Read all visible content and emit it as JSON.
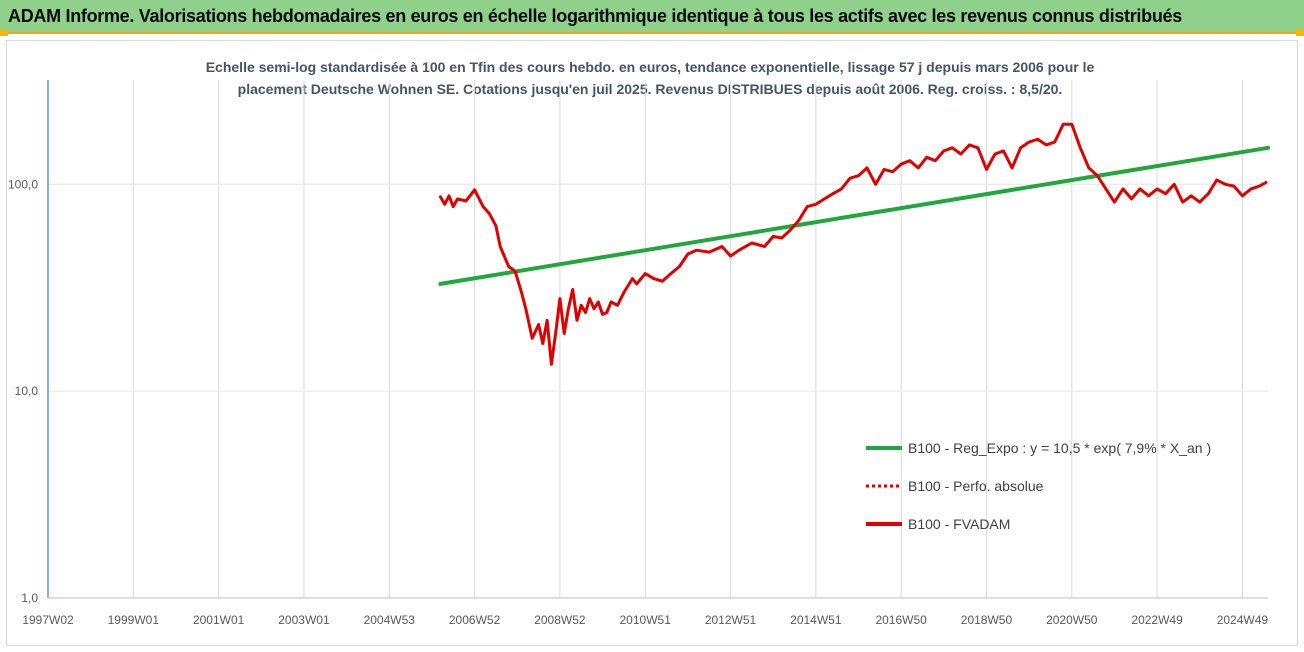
{
  "banner": {
    "title": "ADAM Informe. Valorisations hebdomadaires en euros en échelle logarithmique identique à tous les actifs avec les revenus connus distribués",
    "background": "#8fd08a",
    "accent": "#f5b800"
  },
  "chart_data": {
    "type": "line",
    "subtitle_lines": [
      "Echelle semi-log standardisée à 100 en Tfin des cours hebdo. en euros, tendance exponentielle, lissage 57 j depuis mars 2006 pour le",
      "placement Deutsche Wohnen SE. Cotations jusqu'en juil 2025. Revenus DISTRIBUES depuis août 2006. Reg. croiss. : 8,5/20."
    ],
    "y_scale": "log",
    "ylim": [
      1,
      200
    ],
    "y_ticks": [
      1,
      10,
      100
    ],
    "y_tick_labels": [
      "1,0",
      "10,0",
      "100,0"
    ],
    "x_range": [
      1997.0,
      2025.6
    ],
    "x_ticks": [
      1997.0,
      1999.0,
      2001.0,
      2003.0,
      2005.0,
      2007.0,
      2009.0,
      2011.0,
      2013.0,
      2015.0,
      2017.0,
      2019.0,
      2021.0,
      2023.0,
      2025.0
    ],
    "x_tick_labels": [
      "1997W02",
      "1999W01",
      "2001W01",
      "2003W01",
      "2004W53",
      "2006W52",
      "2008W52",
      "2010W51",
      "2012W51",
      "2014W51",
      "2016W50",
      "2018W50",
      "2020W50",
      "2022W49",
      "2024W49"
    ],
    "grid": "vertical",
    "legend_position": "bottom-right",
    "series": [
      {
        "name": "B100 - Reg_Expo : y = 10,5 * exp( 7,9% *  X_an )",
        "style": "solid",
        "color": "#21a73c",
        "x": [
          2006.2,
          2025.6
        ],
        "y": [
          33,
          150
        ]
      },
      {
        "name": "B100 - Perfo. absolue",
        "style": "dotted",
        "color": "#e00000",
        "x": [],
        "y": []
      },
      {
        "name": "B100 - FVADAM",
        "style": "solid",
        "color": "#e00000",
        "x": [
          2006.2,
          2006.3,
          2006.4,
          2006.5,
          2006.6,
          2006.8,
          2007.0,
          2007.2,
          2007.35,
          2007.5,
          2007.6,
          2007.8,
          2007.95,
          2008.1,
          2008.2,
          2008.35,
          2008.5,
          2008.6,
          2008.7,
          2008.8,
          2008.9,
          2009.0,
          2009.1,
          2009.2,
          2009.3,
          2009.4,
          2009.5,
          2009.6,
          2009.7,
          2009.8,
          2009.9,
          2010.0,
          2010.1,
          2010.2,
          2010.35,
          2010.5,
          2010.7,
          2010.8,
          2011.0,
          2011.2,
          2011.4,
          2011.6,
          2011.8,
          2012.0,
          2012.2,
          2012.5,
          2012.8,
          2013.0,
          2013.2,
          2013.5,
          2013.8,
          2014.0,
          2014.2,
          2014.4,
          2014.6,
          2014.8,
          2015.0,
          2015.2,
          2015.4,
          2015.6,
          2015.8,
          2016.0,
          2016.2,
          2016.4,
          2016.6,
          2016.8,
          2017.0,
          2017.2,
          2017.4,
          2017.6,
          2017.8,
          2018.0,
          2018.2,
          2018.4,
          2018.6,
          2018.8,
          2019.0,
          2019.2,
          2019.4,
          2019.6,
          2019.8,
          2020.0,
          2020.2,
          2020.4,
          2020.6,
          2020.8,
          2021.0,
          2021.2,
          2021.4,
          2021.6,
          2021.8,
          2022.0,
          2022.2,
          2022.4,
          2022.6,
          2022.8,
          2023.0,
          2023.2,
          2023.4,
          2023.6,
          2023.8,
          2024.0,
          2024.2,
          2024.4,
          2024.6,
          2024.8,
          2025.0,
          2025.2,
          2025.4,
          2025.55
        ],
        "y": [
          87,
          80,
          88,
          78,
          85,
          83,
          94,
          78,
          72,
          63,
          50,
          40,
          38,
          30,
          25,
          18,
          21,
          17,
          22,
          13.5,
          19,
          28,
          19,
          25,
          31,
          22,
          26,
          24,
          28,
          25,
          27,
          23.5,
          24,
          27,
          26,
          30,
          35,
          33,
          37,
          35,
          34,
          37,
          40,
          46,
          48,
          47,
          50,
          45,
          48,
          52,
          50,
          56,
          55,
          60,
          67,
          78,
          80,
          85,
          90,
          95,
          107,
          110,
          120,
          100,
          118,
          115,
          125,
          130,
          120,
          135,
          130,
          145,
          150,
          140,
          155,
          150,
          118,
          140,
          145,
          120,
          150,
          160,
          165,
          155,
          160,
          195,
          195,
          150,
          120,
          110,
          95,
          82,
          95,
          85,
          95,
          88,
          95,
          90,
          100,
          82,
          88,
          82,
          90,
          105,
          100,
          98,
          88,
          95,
          98,
          102
        ]
      }
    ]
  }
}
